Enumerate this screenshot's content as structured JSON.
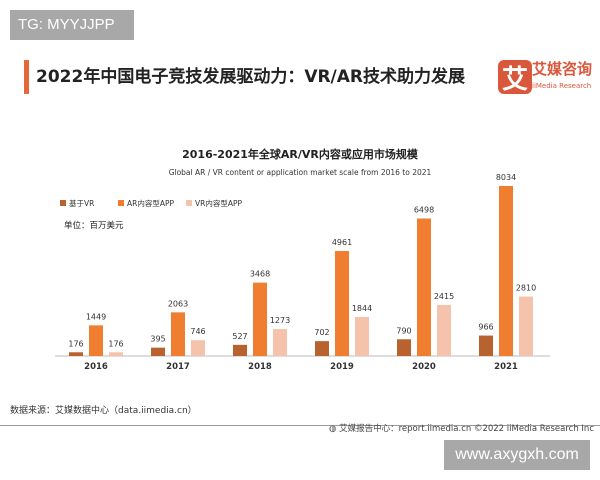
{
  "watermark_top": "TG: MYYJJPP",
  "watermark_bottom": "www.axygxh.com",
  "header": {
    "title": "2022年中国电子竞技发展驱动力：VR/AR技术助力发展",
    "brand": "艾媒咨询",
    "brand_en": "iiMedia Research",
    "logo_glyph": "艾"
  },
  "chart_data": {
    "type": "bar",
    "title": "2016-2021年全球AR/VR内容或应用市场规模",
    "subtitle": "Global AR / VR content or application market scale from 2016 to 2021",
    "unit": "单位：百万美元",
    "categories": [
      "2016",
      "2017",
      "2018",
      "2019",
      "2020",
      "2021"
    ],
    "series": [
      {
        "name": "基于VR",
        "color": "#b8622f",
        "values": [
          176,
          395,
          527,
          702,
          790,
          966
        ]
      },
      {
        "name": "AR内容型APP",
        "color": "#ef7e30",
        "values": [
          1449,
          2063,
          3468,
          4961,
          6498,
          8034
        ]
      },
      {
        "name": "VR内容型APP",
        "color": "#f5c2ab",
        "values": [
          176,
          746,
          1273,
          1844,
          2415,
          2810
        ]
      }
    ],
    "ylim": [
      0,
      8500
    ],
    "grid": false,
    "legend": "top-left"
  },
  "footer": {
    "source": "数据来源：艾媒数据中心（data.iimedia.cn）",
    "report": "艾媒报告中心：report.iimedia.cn  ©2022  iiMedia Research Inc"
  }
}
